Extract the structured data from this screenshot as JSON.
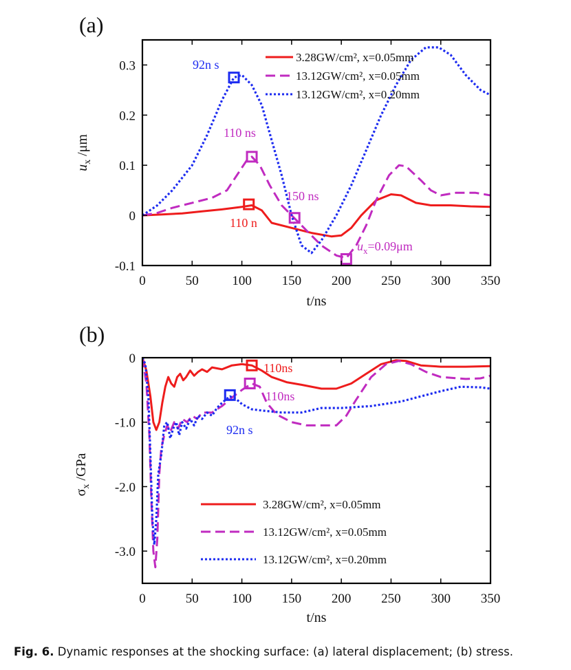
{
  "figure": {
    "caption_label": "Fig. 6.",
    "caption_text": " Dynamic responses at the shocking surface: (a) lateral displacement; (b) stress."
  },
  "chart_data": [
    {
      "type": "line",
      "panel_label": "(a)",
      "title": "",
      "xlabel": "t/ns",
      "ylabel_main": "u",
      "ylabel_sub": "x",
      "ylabel_unit": " /μm",
      "xlim": [
        0,
        350
      ],
      "ylim": [
        -0.1,
        0.35
      ],
      "x_ticks": [
        0,
        50,
        100,
        150,
        200,
        250,
        300,
        350
      ],
      "x_tick_labels": [
        "0",
        "50",
        "100",
        "150",
        "200",
        "250",
        "300",
        "350"
      ],
      "y_ticks": [
        -0.1,
        0,
        0.1,
        0.2,
        0.3
      ],
      "y_tick_labels": [
        "-0.1",
        "0",
        "0.1",
        "0.2",
        "0.3"
      ],
      "legend_position": "top-right",
      "series": [
        {
          "name": "3.28GW/cm², x=0.05mm",
          "color": "#ee1c1c",
          "style": "solid",
          "points": [
            [
              0,
              0
            ],
            [
              20,
              0.002
            ],
            [
              40,
              0.004
            ],
            [
              60,
              0.008
            ],
            [
              80,
              0.012
            ],
            [
              100,
              0.017
            ],
            [
              110,
              0.02
            ],
            [
              120,
              0.01
            ],
            [
              130,
              -0.015
            ],
            [
              150,
              -0.025
            ],
            [
              170,
              -0.035
            ],
            [
              190,
              -0.042
            ],
            [
              200,
              -0.04
            ],
            [
              210,
              -0.025
            ],
            [
              220,
              0
            ],
            [
              235,
              0.03
            ],
            [
              250,
              0.042
            ],
            [
              260,
              0.04
            ],
            [
              275,
              0.025
            ],
            [
              290,
              0.02
            ],
            [
              310,
              0.02
            ],
            [
              330,
              0.018
            ],
            [
              350,
              0.017
            ]
          ]
        },
        {
          "name": "13.12GW/cm², x=0.05mm",
          "color": "#c02bc0",
          "style": "dashed",
          "points": [
            [
              0,
              0
            ],
            [
              15,
              0.005
            ],
            [
              30,
              0.015
            ],
            [
              50,
              0.025
            ],
            [
              70,
              0.035
            ],
            [
              85,
              0.05
            ],
            [
              95,
              0.08
            ],
            [
              105,
              0.11
            ],
            [
              110,
              0.117
            ],
            [
              118,
              0.1
            ],
            [
              128,
              0.06
            ],
            [
              140,
              0.02
            ],
            [
              150,
              0
            ],
            [
              165,
              -0.03
            ],
            [
              180,
              -0.06
            ],
            [
              195,
              -0.08
            ],
            [
              205,
              -0.085
            ],
            [
              215,
              -0.06
            ],
            [
              225,
              -0.02
            ],
            [
              235,
              0.03
            ],
            [
              248,
              0.08
            ],
            [
              258,
              0.1
            ],
            [
              265,
              0.098
            ],
            [
              280,
              0.07
            ],
            [
              290,
              0.05
            ],
            [
              300,
              0.04
            ],
            [
              315,
              0.045
            ],
            [
              335,
              0.045
            ],
            [
              350,
              0.04
            ]
          ]
        },
        {
          "name": "13.12GW/cm², x=0.20mm",
          "color": "#1c2bf0",
          "style": "dotted",
          "points": [
            [
              0,
              0
            ],
            [
              15,
              0.02
            ],
            [
              30,
              0.05
            ],
            [
              50,
              0.1
            ],
            [
              65,
              0.16
            ],
            [
              80,
              0.23
            ],
            [
              92,
              0.275
            ],
            [
              100,
              0.28
            ],
            [
              110,
              0.26
            ],
            [
              120,
              0.22
            ],
            [
              130,
              0.15
            ],
            [
              140,
              0.08
            ],
            [
              150,
              0
            ],
            [
              160,
              -0.06
            ],
            [
              170,
              -0.075
            ],
            [
              180,
              -0.05
            ],
            [
              195,
              0
            ],
            [
              210,
              0.06
            ],
            [
              225,
              0.13
            ],
            [
              240,
              0.2
            ],
            [
              255,
              0.26
            ],
            [
              270,
              0.31
            ],
            [
              285,
              0.335
            ],
            [
              298,
              0.335
            ],
            [
              310,
              0.32
            ],
            [
              325,
              0.28
            ],
            [
              340,
              0.25
            ],
            [
              350,
              0.24
            ]
          ]
        }
      ],
      "markers": [
        {
          "x": 92,
          "y": 0.275,
          "color": "#1c2bf0"
        },
        {
          "x": 110,
          "y": 0.117,
          "color": "#c02bc0"
        },
        {
          "x": 107,
          "y": 0.022,
          "color": "#ee1c1c"
        },
        {
          "x": 153,
          "y": -0.005,
          "color": "#c02bc0"
        },
        {
          "x": 205,
          "y": -0.087,
          "color": "#c02bc0"
        }
      ],
      "annotations": [
        {
          "text": "92n s",
          "color": "#1c2bf0"
        },
        {
          "text": "110 ns",
          "color": "#c02bc0"
        },
        {
          "text": "110 n",
          "color": "#ee1c1c"
        },
        {
          "text": "150 ns",
          "color": "#c02bc0"
        },
        {
          "text_main": "u",
          "text_sub": "x",
          "text_tail": "=0.09μm",
          "color": "#c02bc0"
        }
      ]
    },
    {
      "type": "line",
      "panel_label": "(b)",
      "title": "",
      "xlabel": "t/ns",
      "ylabel_main": "σ",
      "ylabel_sub": "x",
      "ylabel_unit": " /GPa",
      "xlim": [
        0,
        350
      ],
      "ylim": [
        -3.5,
        0
      ],
      "x_ticks": [
        0,
        50,
        100,
        150,
        200,
        250,
        300,
        350
      ],
      "x_tick_labels": [
        "0",
        "50",
        "100",
        "150",
        "200",
        "250",
        "300",
        "350"
      ],
      "y_ticks": [
        0,
        -1,
        -2,
        -3
      ],
      "y_tick_labels": [
        "0",
        "-1.0",
        "-2.0",
        "-3.0"
      ],
      "legend_position": "bottom-center",
      "series": [
        {
          "name": "3.28GW/cm², x=0.05mm",
          "color": "#ee1c1c",
          "style": "solid",
          "points": [
            [
              0,
              0
            ],
            [
              4,
              -0.2
            ],
            [
              8,
              -0.6
            ],
            [
              11,
              -1.0
            ],
            [
              14,
              -1.12
            ],
            [
              17,
              -1.0
            ],
            [
              20,
              -0.7
            ],
            [
              23,
              -0.45
            ],
            [
              26,
              -0.3
            ],
            [
              29,
              -0.4
            ],
            [
              32,
              -0.45
            ],
            [
              35,
              -0.3
            ],
            [
              38,
              -0.25
            ],
            [
              41,
              -0.35
            ],
            [
              44,
              -0.3
            ],
            [
              48,
              -0.2
            ],
            [
              52,
              -0.28
            ],
            [
              56,
              -0.22
            ],
            [
              60,
              -0.18
            ],
            [
              65,
              -0.22
            ],
            [
              70,
              -0.15
            ],
            [
              80,
              -0.18
            ],
            [
              90,
              -0.12
            ],
            [
              100,
              -0.1
            ],
            [
              110,
              -0.12
            ],
            [
              120,
              -0.2
            ],
            [
              130,
              -0.3
            ],
            [
              145,
              -0.38
            ],
            [
              160,
              -0.42
            ],
            [
              180,
              -0.48
            ],
            [
              195,
              -0.48
            ],
            [
              210,
              -0.4
            ],
            [
              225,
              -0.25
            ],
            [
              240,
              -0.1
            ],
            [
              255,
              -0.04
            ],
            [
              265,
              -0.05
            ],
            [
              280,
              -0.12
            ],
            [
              300,
              -0.14
            ],
            [
              325,
              -0.14
            ],
            [
              350,
              -0.13
            ]
          ]
        },
        {
          "name": "13.12GW/cm², x=0.05mm",
          "color": "#c02bc0",
          "style": "dashed",
          "points": [
            [
              0,
              0
            ],
            [
              4,
              -0.4
            ],
            [
              7,
              -1.2
            ],
            [
              9,
              -2.2
            ],
            [
              11,
              -3.0
            ],
            [
              13,
              -3.25
            ],
            [
              15,
              -2.8
            ],
            [
              17,
              -1.8
            ],
            [
              19,
              -1.4
            ],
            [
              22,
              -1.2
            ],
            [
              25,
              -1.05
            ],
            [
              28,
              -1.15
            ],
            [
              32,
              -1.0
            ],
            [
              36,
              -1.1
            ],
            [
              40,
              -0.95
            ],
            [
              45,
              -1.0
            ],
            [
              50,
              -0.9
            ],
            [
              55,
              -0.95
            ],
            [
              60,
              -0.85
            ],
            [
              70,
              -0.85
            ],
            [
              80,
              -0.75
            ],
            [
              90,
              -0.62
            ],
            [
              100,
              -0.5
            ],
            [
              110,
              -0.4
            ],
            [
              118,
              -0.45
            ],
            [
              125,
              -0.7
            ],
            [
              135,
              -0.88
            ],
            [
              150,
              -1.0
            ],
            [
              165,
              -1.05
            ],
            [
              180,
              -1.05
            ],
            [
              195,
              -1.05
            ],
            [
              205,
              -0.9
            ],
            [
              215,
              -0.65
            ],
            [
              230,
              -0.3
            ],
            [
              245,
              -0.1
            ],
            [
              258,
              -0.05
            ],
            [
              270,
              -0.1
            ],
            [
              285,
              -0.22
            ],
            [
              300,
              -0.3
            ],
            [
              325,
              -0.33
            ],
            [
              340,
              -0.32
            ],
            [
              350,
              -0.28
            ]
          ]
        },
        {
          "name": "13.12GW/cm², x=0.20mm",
          "color": "#1c2bf0",
          "style": "dotted",
          "points": [
            [
              0,
              0
            ],
            [
              3,
              -0.1
            ],
            [
              6,
              -0.6
            ],
            [
              8,
              -1.5
            ],
            [
              10,
              -2.5
            ],
            [
              12,
              -2.9
            ],
            [
              14,
              -2.5
            ],
            [
              16,
              -1.8
            ],
            [
              19,
              -1.5
            ],
            [
              22,
              -1.05
            ],
            [
              25,
              -1.0
            ],
            [
              28,
              -1.25
            ],
            [
              31,
              -1.1
            ],
            [
              34,
              -1.0
            ],
            [
              37,
              -1.2
            ],
            [
              40,
              -1.0
            ],
            [
              44,
              -1.1
            ],
            [
              48,
              -0.95
            ],
            [
              52,
              -1.05
            ],
            [
              56,
              -0.9
            ],
            [
              60,
              -0.95
            ],
            [
              65,
              -0.85
            ],
            [
              70,
              -0.9
            ],
            [
              75,
              -0.78
            ],
            [
              80,
              -0.7
            ],
            [
              88,
              -0.6
            ],
            [
              95,
              -0.65
            ],
            [
              100,
              -0.72
            ],
            [
              110,
              -0.8
            ],
            [
              120,
              -0.82
            ],
            [
              140,
              -0.85
            ],
            [
              160,
              -0.85
            ],
            [
              180,
              -0.78
            ],
            [
              200,
              -0.78
            ],
            [
              230,
              -0.75
            ],
            [
              260,
              -0.68
            ],
            [
              280,
              -0.6
            ],
            [
              300,
              -0.52
            ],
            [
              320,
              -0.45
            ],
            [
              340,
              -0.46
            ],
            [
              350,
              -0.48
            ]
          ]
        }
      ],
      "markers": [
        {
          "x": 110,
          "y": -0.12,
          "color": "#ee1c1c"
        },
        {
          "x": 108,
          "y": -0.4,
          "color": "#c02bc0"
        },
        {
          "x": 88,
          "y": -0.58,
          "color": "#1c2bf0"
        }
      ],
      "annotations": [
        {
          "text": "110ns",
          "color": "#ee1c1c"
        },
        {
          "text": "110ns",
          "color": "#c02bc0"
        },
        {
          "text": "92n s",
          "color": "#1c2bf0"
        }
      ]
    }
  ]
}
